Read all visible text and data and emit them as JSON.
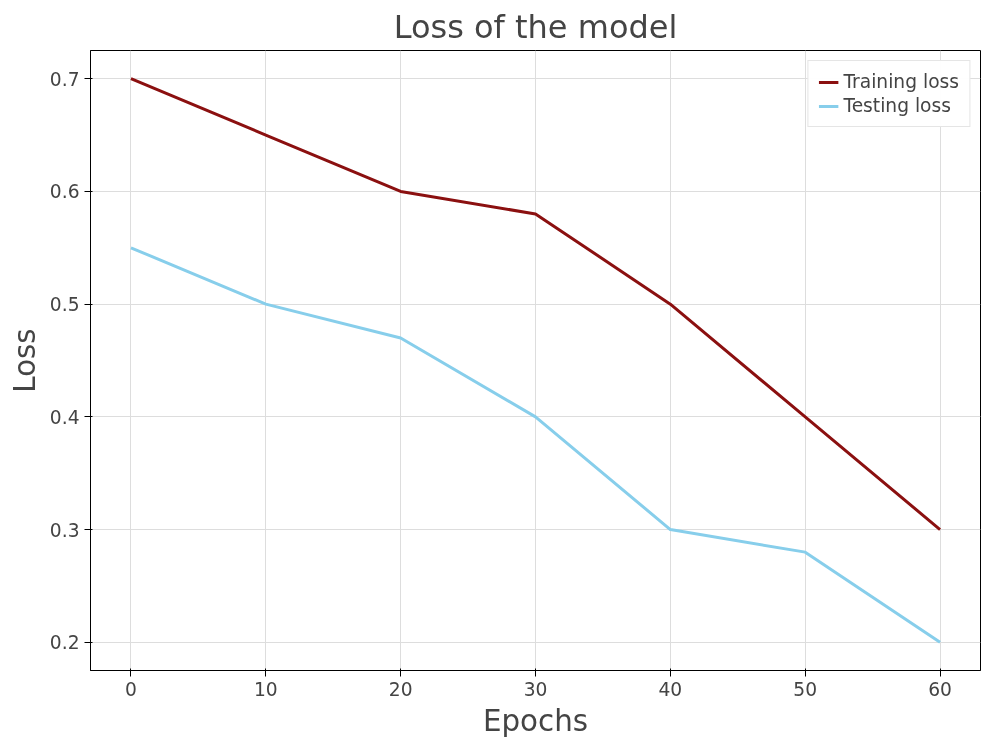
{
  "chart_data": {
    "type": "line",
    "title": "Loss of the model",
    "xlabel": "Epochs",
    "ylabel": "Loss",
    "x": [
      0,
      10,
      20,
      30,
      40,
      50,
      60
    ],
    "series": [
      {
        "name": "Training loss",
        "color": "#8b1010",
        "values": [
          0.7,
          0.65,
          0.6,
          0.58,
          0.5,
          0.4,
          0.3
        ]
      },
      {
        "name": "Testing loss",
        "color": "#87ceeb",
        "values": [
          0.55,
          0.5,
          0.47,
          0.4,
          0.3,
          0.28,
          0.2
        ]
      }
    ],
    "xlim": [
      -3,
      63
    ],
    "ylim": [
      0.175,
      0.725
    ],
    "xticks": [
      0,
      10,
      20,
      30,
      40,
      50,
      60
    ],
    "yticks": [
      0.2,
      0.3,
      0.4,
      0.5,
      0.6,
      0.7
    ],
    "grid": true,
    "legend": "top right"
  }
}
